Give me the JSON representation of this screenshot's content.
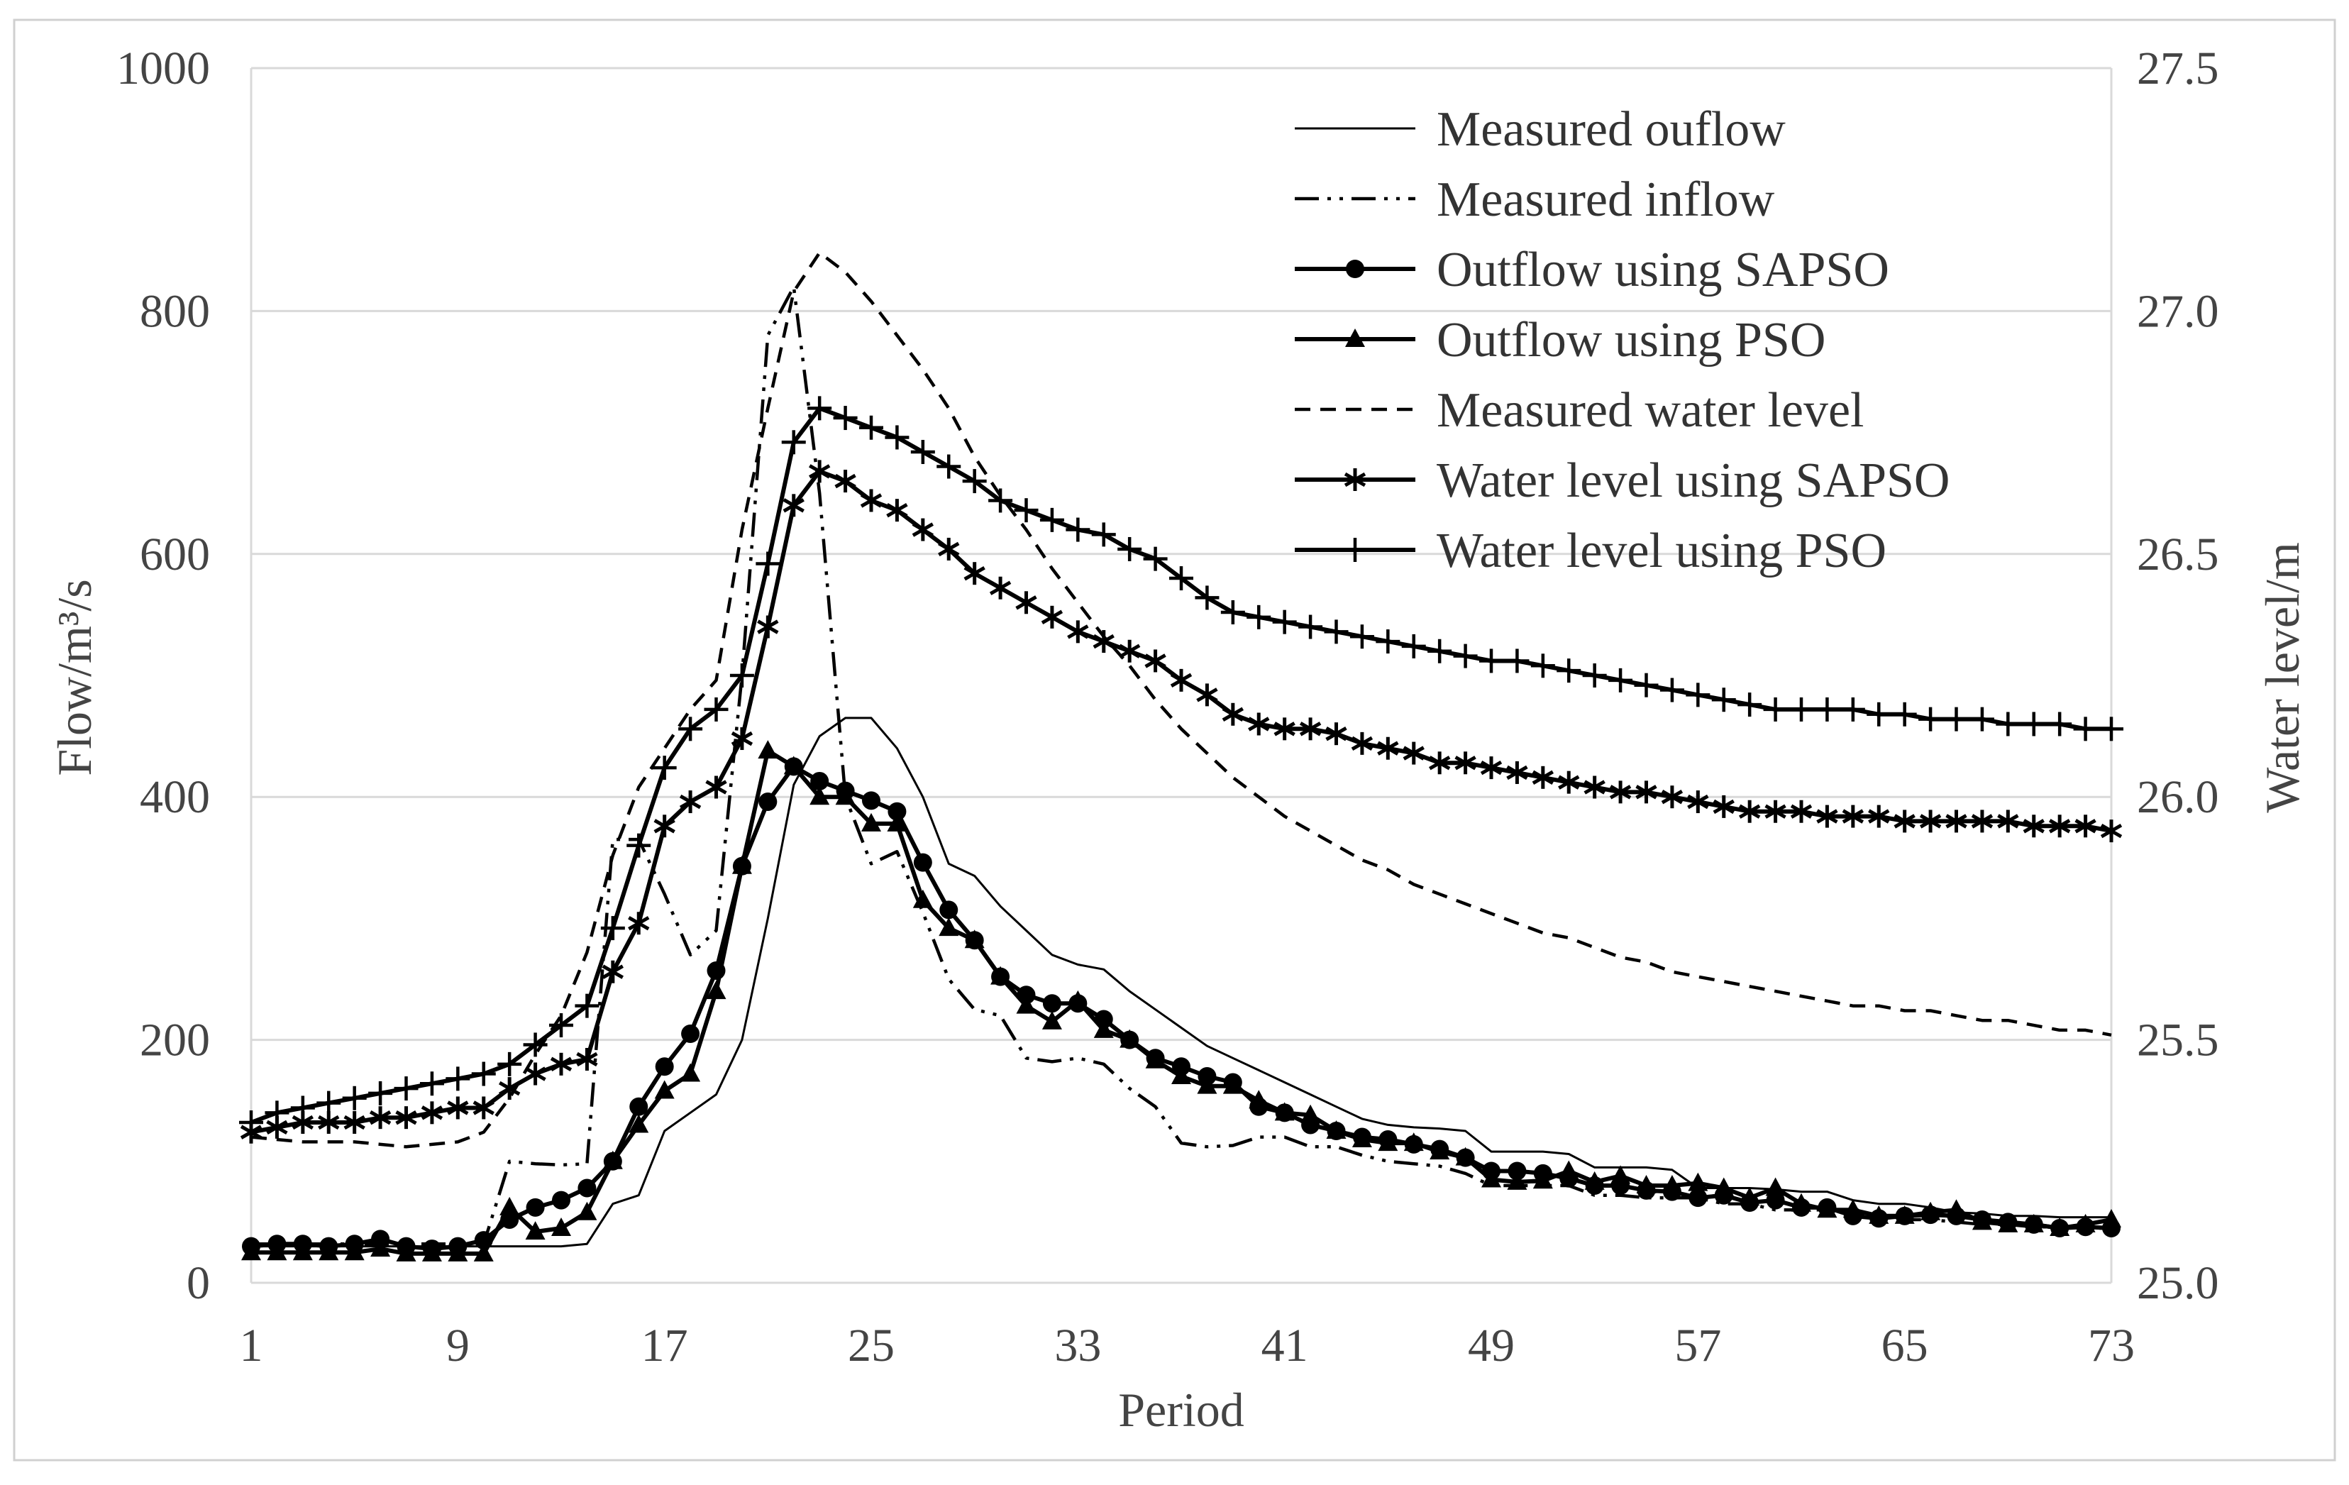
{
  "chart_data": {
    "type": "line",
    "xlabel": "Period",
    "ylabel": "Flow/m³/s",
    "y2label": "Water level/m",
    "xlim": [
      1,
      73
    ],
    "ylim": [
      0,
      1000
    ],
    "y2lim": [
      25.0,
      27.5
    ],
    "xticks": [
      "1",
      "9",
      "17",
      "25",
      "33",
      "41",
      "49",
      "57",
      "65",
      "73"
    ],
    "yticks": [
      "0",
      "200",
      "400",
      "600",
      "800",
      "1000"
    ],
    "y2ticks": [
      "25.0",
      "25.5",
      "26.0",
      "26.5",
      "27.0",
      "27.5"
    ],
    "grid": true,
    "legend_position": "top-right",
    "series": [
      {
        "name": "Measured ouflow",
        "axis": "left",
        "style": "solid",
        "marker": "none",
        "x": [
          1,
          10,
          11,
          12,
          13,
          14,
          15,
          16,
          17,
          18,
          19,
          20,
          21,
          22,
          23,
          24,
          25,
          26,
          27,
          28,
          29,
          30,
          31,
          32,
          33,
          34,
          35,
          36,
          37,
          38,
          39,
          40,
          41,
          42,
          43,
          44,
          45,
          46,
          47,
          48,
          49,
          50,
          51,
          52,
          53,
          54,
          55,
          56,
          57,
          58,
          59,
          60,
          61,
          62,
          63,
          64,
          65,
          66,
          67,
          68,
          69,
          70,
          71,
          72,
          73
        ],
        "values": [
          30,
          30,
          30,
          30,
          30,
          32,
          65,
          72,
          125,
          140,
          155,
          200,
          300,
          410,
          450,
          465,
          465,
          440,
          400,
          345,
          335,
          310,
          290,
          270,
          262,
          258,
          240,
          225,
          210,
          195,
          185,
          175,
          165,
          155,
          145,
          135,
          130,
          128,
          127,
          125,
          108,
          108,
          108,
          106,
          95,
          95,
          95,
          93,
          78,
          78,
          78,
          77,
          75,
          75,
          68,
          65,
          65,
          62,
          58,
          57,
          55,
          55,
          54,
          54,
          54
        ]
      },
      {
        "name": "Measured inflow",
        "axis": "left",
        "style": "dash-dot-dot",
        "marker": "none",
        "x": [
          1,
          9,
          10,
          11,
          12,
          13,
          14,
          15,
          16,
          17,
          18,
          19,
          20,
          21,
          22,
          23,
          24,
          25,
          26,
          27,
          28,
          29,
          30,
          31,
          32,
          33,
          34,
          35,
          36,
          37,
          38,
          39,
          40,
          41,
          42,
          43,
          44,
          45,
          46,
          47,
          48,
          49,
          50,
          51,
          52,
          53,
          54,
          55,
          56,
          57,
          58,
          59,
          60,
          61,
          62,
          63,
          64,
          65,
          66,
          67,
          68,
          69,
          70,
          71,
          72,
          73
        ],
        "values": [
          32,
          32,
          32,
          100,
          98,
          97,
          98,
          365,
          365,
          320,
          270,
          290,
          500,
          780,
          820,
          650,
          400,
          345,
          355,
          305,
          250,
          225,
          220,
          185,
          182,
          185,
          180,
          160,
          145,
          115,
          112,
          113,
          120,
          120,
          112,
          112,
          105,
          100,
          98,
          96,
          90,
          80,
          80,
          80,
          80,
          72,
          72,
          70,
          70,
          70,
          65,
          65,
          60,
          60,
          60,
          56,
          54,
          52,
          52,
          50,
          48,
          48,
          46,
          46,
          45,
          45
        ]
      },
      {
        "name": "Outflow using SAPSO",
        "axis": "left",
        "style": "solid-bold",
        "marker": "circle",
        "x": [
          1,
          2,
          3,
          4,
          5,
          6,
          7,
          8,
          9,
          10,
          11,
          12,
          13,
          14,
          15,
          16,
          17,
          18,
          19,
          20,
          21,
          22,
          23,
          24,
          25,
          26,
          27,
          28,
          29,
          30,
          31,
          32,
          33,
          34,
          35,
          36,
          37,
          38,
          39,
          40,
          41,
          42,
          43,
          44,
          45,
          46,
          47,
          48,
          49,
          50,
          51,
          52,
          53,
          54,
          55,
          56,
          57,
          58,
          59,
          60,
          61,
          62,
          63,
          64,
          65,
          66,
          67,
          68,
          69,
          70,
          71,
          72,
          73
        ],
        "values": [
          30,
          32,
          32,
          30,
          32,
          36,
          30,
          28,
          30,
          35,
          52,
          62,
          68,
          78,
          100,
          145,
          178,
          205,
          257,
          343,
          396,
          425,
          413,
          405,
          397,
          388,
          346,
          307,
          282,
          252,
          237,
          230,
          230,
          217,
          200,
          185,
          178,
          170,
          165,
          145,
          140,
          130,
          125,
          120,
          118,
          114,
          110,
          103,
          92,
          92,
          90,
          86,
          80,
          80,
          76,
          75,
          70,
          72,
          66,
          68,
          62,
          62,
          55,
          53,
          55,
          56,
          55,
          52,
          50,
          48,
          45,
          46,
          45
        ]
      },
      {
        "name": "Outflow using PSO",
        "axis": "left",
        "style": "solid-bold",
        "marker": "triangle",
        "x": [
          1,
          2,
          3,
          4,
          5,
          6,
          7,
          8,
          9,
          10,
          11,
          12,
          13,
          14,
          15,
          16,
          17,
          18,
          19,
          20,
          21,
          22,
          23,
          24,
          25,
          26,
          27,
          28,
          29,
          30,
          31,
          32,
          33,
          34,
          35,
          36,
          37,
          38,
          39,
          40,
          41,
          42,
          43,
          44,
          45,
          46,
          47,
          48,
          49,
          50,
          51,
          52,
          53,
          54,
          55,
          56,
          57,
          58,
          59,
          60,
          61,
          62,
          63,
          64,
          65,
          66,
          67,
          68,
          69,
          70,
          71,
          72,
          73
        ],
        "values": [
          25,
          25,
          25,
          25,
          25,
          28,
          24,
          24,
          24,
          24,
          62,
          42,
          45,
          58,
          100,
          130,
          158,
          172,
          240,
          343,
          438,
          425,
          400,
          400,
          378,
          378,
          315,
          292,
          282,
          252,
          228,
          215,
          232,
          208,
          200,
          183,
          170,
          162,
          162,
          150,
          140,
          138,
          125,
          118,
          115,
          115,
          108,
          103,
          85,
          83,
          84,
          92,
          83,
          88,
          80,
          80,
          82,
          78,
          70,
          78,
          65,
          60,
          60,
          55,
          55,
          58,
          60,
          50,
          48,
          48,
          45,
          48,
          52
        ]
      },
      {
        "name": "Measured water level",
        "axis": "right",
        "style": "dashed",
        "marker": "none",
        "x": [
          1,
          3,
          5,
          7,
          9,
          10,
          11,
          12,
          13,
          14,
          15,
          16,
          17,
          18,
          19,
          20,
          21,
          22,
          23,
          24,
          25,
          26,
          27,
          28,
          29,
          30,
          31,
          32,
          33,
          34,
          35,
          36,
          37,
          38,
          39,
          40,
          41,
          42,
          43,
          44,
          45,
          46,
          47,
          48,
          49,
          50,
          51,
          52,
          53,
          54,
          55,
          56,
          57,
          58,
          59,
          60,
          61,
          62,
          63,
          64,
          65,
          66,
          67,
          68,
          69,
          70,
          71,
          72,
          73
        ],
        "y": [
          25.3,
          25.29,
          25.29,
          25.28,
          25.29,
          25.31,
          25.38,
          25.47,
          25.55,
          25.68,
          25.88,
          26.02,
          26.1,
          26.18,
          26.24,
          26.55,
          26.8,
          27.04,
          27.12,
          27.08,
          27.02,
          26.95,
          26.88,
          26.8,
          26.7,
          26.62,
          26.55,
          26.47,
          26.4,
          26.33,
          26.27,
          26.2,
          26.14,
          26.09,
          26.04,
          26.0,
          25.96,
          25.93,
          25.9,
          25.87,
          25.85,
          25.82,
          25.8,
          25.78,
          25.76,
          25.74,
          25.72,
          25.71,
          25.69,
          25.67,
          25.66,
          25.64,
          25.63,
          25.62,
          25.61,
          25.6,
          25.59,
          25.58,
          25.57,
          25.57,
          25.56,
          25.56,
          25.55,
          25.54,
          25.54,
          25.53,
          25.52,
          25.52,
          25.51
        ]
      },
      {
        "name": "Water level using SAPSO",
        "axis": "right",
        "style": "solid-bold",
        "marker": "star",
        "x": [
          1,
          2,
          3,
          4,
          5,
          6,
          7,
          8,
          9,
          10,
          11,
          12,
          13,
          14,
          15,
          16,
          17,
          18,
          19,
          20,
          21,
          22,
          23,
          24,
          25,
          26,
          27,
          28,
          29,
          30,
          31,
          32,
          33,
          34,
          35,
          36,
          37,
          38,
          39,
          40,
          41,
          42,
          43,
          44,
          45,
          46,
          47,
          48,
          49,
          50,
          51,
          52,
          53,
          54,
          55,
          56,
          57,
          58,
          59,
          60,
          61,
          62,
          63,
          64,
          65,
          66,
          67,
          68,
          69,
          70,
          71,
          72,
          73
        ],
        "y": [
          25.31,
          25.32,
          25.33,
          25.33,
          25.33,
          25.34,
          25.34,
          25.35,
          25.36,
          25.36,
          25.4,
          25.43,
          25.45,
          25.46,
          25.64,
          25.74,
          25.94,
          25.99,
          26.02,
          26.12,
          26.35,
          26.6,
          26.67,
          26.65,
          26.61,
          26.59,
          26.55,
          26.51,
          26.46,
          26.43,
          26.4,
          26.37,
          26.34,
          26.32,
          26.3,
          26.28,
          26.24,
          26.21,
          26.17,
          26.15,
          26.14,
          26.14,
          26.13,
          26.11,
          26.1,
          26.09,
          26.07,
          26.07,
          26.06,
          26.05,
          26.04,
          26.03,
          26.02,
          26.01,
          26.01,
          26.0,
          25.99,
          25.98,
          25.97,
          25.97,
          25.97,
          25.96,
          25.96,
          25.96,
          25.95,
          25.95,
          25.95,
          25.95,
          25.95,
          25.94,
          25.94,
          25.94,
          25.93
        ]
      },
      {
        "name": "Water level using PSO",
        "axis": "right",
        "style": "solid-bold",
        "marker": "plus",
        "x": [
          1,
          2,
          3,
          4,
          5,
          6,
          7,
          8,
          9,
          10,
          11,
          12,
          13,
          14,
          15,
          16,
          17,
          18,
          19,
          20,
          21,
          22,
          23,
          24,
          25,
          26,
          27,
          28,
          29,
          30,
          31,
          32,
          33,
          34,
          35,
          36,
          37,
          38,
          39,
          40,
          41,
          42,
          43,
          44,
          45,
          46,
          47,
          48,
          49,
          50,
          51,
          52,
          53,
          54,
          55,
          56,
          57,
          58,
          59,
          60,
          61,
          62,
          63,
          64,
          65,
          66,
          67,
          68,
          69,
          70,
          71,
          72,
          73
        ],
        "y": [
          25.33,
          25.35,
          25.36,
          25.37,
          25.38,
          25.39,
          25.4,
          25.41,
          25.42,
          25.43,
          25.45,
          25.49,
          25.53,
          25.57,
          25.73,
          25.9,
          26.06,
          26.14,
          26.18,
          26.25,
          26.48,
          26.73,
          26.8,
          26.78,
          26.76,
          26.74,
          26.71,
          26.68,
          26.65,
          26.61,
          26.59,
          26.57,
          26.55,
          26.54,
          26.51,
          26.49,
          26.45,
          26.41,
          26.38,
          26.37,
          26.36,
          26.35,
          26.34,
          26.33,
          26.32,
          26.31,
          26.3,
          26.29,
          26.28,
          26.28,
          26.27,
          26.26,
          26.25,
          26.24,
          26.23,
          26.22,
          26.21,
          26.2,
          26.19,
          26.18,
          26.18,
          26.18,
          26.18,
          26.17,
          26.17,
          26.16,
          26.16,
          26.16,
          26.15,
          26.15,
          26.15,
          26.14,
          26.14
        ]
      }
    ]
  }
}
